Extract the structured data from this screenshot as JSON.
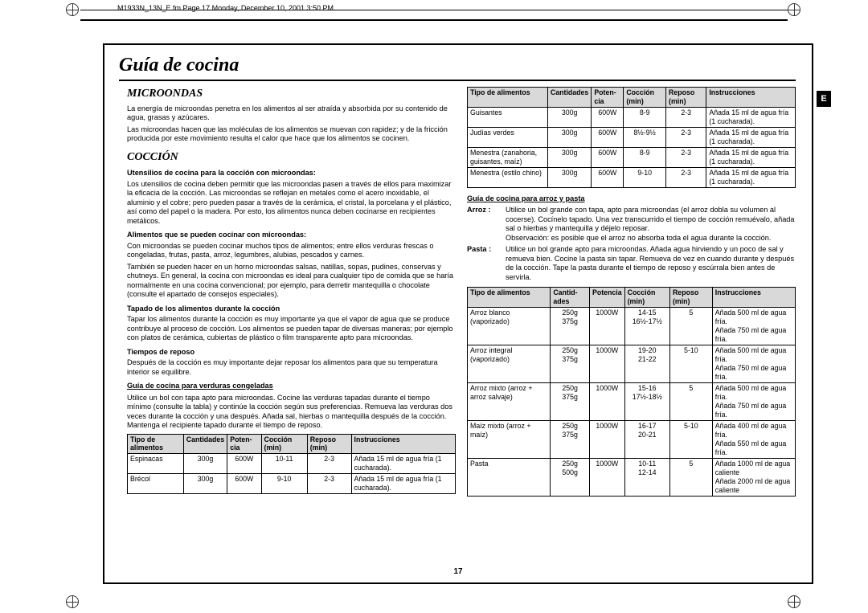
{
  "header": {
    "file_info": "M1933N_13N_E.fm  Page 17  Monday, December 10, 2001  3:50 PM"
  },
  "side_tab": "E",
  "title": "Guía de cocina",
  "page_number": "17",
  "left": {
    "h1": "MICROONDAS",
    "p1": "La energía de microondas penetra en los alimentos al ser atraída y absorbida por su contenido de agua, grasas y azúcares.",
    "p2": "Las microondas hacen que las moléculas de los alimentos se muevan con rapidez; y de la fricción producida por este movimiento resulta el calor que hace que los alimentos se cocinen.",
    "h2": "COCCIÓN",
    "sub1": "Utensilios de cocina para la cocción con microondas:",
    "sub1_text": "Los utensilios de cocina deben permitir que las microondas pasen a través de ellos para maximizar la eficacia de la cocción. Las microondas se reflejan en metales como el acero inoxidable, el aluminio y el cobre; pero pueden pasar a través de la cerámica, el cristal, la porcelana y el plástico, así como del papel o la madera. Por esto, los alimentos nunca deben cocinarse en recipientes metálicos.",
    "sub2": "Alimentos que se pueden cocinar con microondas:",
    "sub2_text1": "Con microondas se pueden cocinar muchos tipos de alimentos; entre ellos verduras frescas o congeladas, frutas, pasta, arroz, legumbres, alubias, pescados y carnes.",
    "sub2_text2": "También se pueden hacer en un horno microondas salsas, natillas, sopas, pudines, conservas y chutneys. En general, la cocina con microondas es ideal para cualquier tipo de comida que se haría normalmente en una cocina convencional; por ejemplo, para derretir mantequilla o chocolate (consulte el apartado de consejos especiales).",
    "sub3": "Tapado de los alimentos durante la cocción",
    "sub3_text": "Tapar los alimentos durante la cocción es muy importante ya que el vapor de agua que se produce contribuye al proceso de cocción. Los alimentos se pueden tapar de diversas maneras; por ejemplo con platos de cerámica, cubiertas de plástico o film transparente apto para microondas.",
    "sub4": "Tiempos de reposo",
    "sub4_text": "Después de la cocción es muy importante dejar reposar los alimentos para que su temperatura interior se equilibre.",
    "sub5": "Guía de cocina para verduras congeladas",
    "sub5_text": "Utilice un bol con tapa apto para microondas. Cocine las verduras tapadas durante el tiempo mínimo (consulte la tabla) y continúe la cocción según sus preferencias. Remueva las verduras dos veces durante la cocción y una después. Añada sal, hierbas o mantequilla después de la cocción. Mantenga el recipiente tapado durante el tiempo de reposo.",
    "table1": {
      "headers": [
        "Tipo de alimentos",
        "Cantidades",
        "Poten-cia",
        "Cocción (min)",
        "Reposo (min)",
        "Instrucciones"
      ],
      "rows": [
        [
          "Espinacas",
          "300g",
          "600W",
          "10-11",
          "2-3",
          "Añada 15 ml de agua fría (1 cucharada)."
        ],
        [
          "Brécol",
          "300g",
          "600W",
          "9-10",
          "2-3",
          "Añada 15 ml de agua fría (1 cucharada)."
        ]
      ]
    }
  },
  "right": {
    "table2": {
      "headers": [
        "Tipo de alimentos",
        "Cantidades",
        "Poten-cia",
        "Cocción (min)",
        "Reposo (min)",
        "Instrucciones"
      ],
      "rows": [
        [
          "Guisantes",
          "300g",
          "600W",
          "8-9",
          "2-3",
          "Añada 15 ml de agua fría (1 cucharada)."
        ],
        [
          "Judías verdes",
          "300g",
          "600W",
          "8½-9½",
          "2-3",
          "Añada 15 ml de agua fría (1 cucharada)."
        ],
        [
          "Menestra (zanahoria, guisantes, maíz)",
          "300g",
          "600W",
          "8-9",
          "2-3",
          "Añada 15 ml de agua fría (1 cucharada)."
        ],
        [
          "Menestra (estilo chino)",
          "300g",
          "600W",
          "9-10",
          "2-3",
          "Añada 15 ml de agua fría (1 cucharada)."
        ]
      ]
    },
    "sub6": "Guía de cocina para arroz y pasta",
    "arroz_label": "Arroz :",
    "arroz_text": "Utilice un bol grande con tapa, apto para microondas (el arroz dobla su volumen al cocerse). Cocínelo tapado. Una vez transcurrido el tiempo de cocción remuévalo, añada sal o hierbas y mantequilla y déjelo reposar.\nObservación: es posible que el arroz no absorba toda el agua durante la cocción.",
    "pasta_label": "Pasta :",
    "pasta_text": "Utilice un bol grande apto para microondas. Añada agua hirviendo y un poco de sal y remueva bien. Cocine la pasta sin tapar. Remueva de vez en cuando durante y después de la cocción. Tape la pasta durante el tiempo de reposo y escúrrala bien antes de servirla.",
    "table3": {
      "headers": [
        "Tipo de alimentos",
        "Cantid-ades",
        "Potencia",
        "Cocción (min)",
        "Reposo (min)",
        "Instrucciones"
      ],
      "rows": [
        {
          "c1": "Arroz blanco (vaporizado)",
          "c2": "250g\n375g",
          "c3": "1000W",
          "c4": "14-15\n16½-17½",
          "c5": "5",
          "c6": "Añada 500 ml de agua fría.\nAñada 750 ml de agua fría."
        },
        {
          "c1": "Arroz integral (vaporizado)",
          "c2": "250g\n375g",
          "c3": "1000W",
          "c4": "19-20\n21-22",
          "c5": "5-10",
          "c6": "Añada 500 ml de agua fría.\nAñada 750 ml de agua fría."
        },
        {
          "c1": "Arroz mixto (arroz + arroz salvaje)",
          "c2": "250g\n375g",
          "c3": "1000W",
          "c4": "15-16\n17½-18½",
          "c5": "5",
          "c6": "Añada 500 ml de agua fría.\nAñada 750 ml de agua fría."
        },
        {
          "c1": "Maíz mixto (arroz + maíz)",
          "c2": "250g\n375g",
          "c3": "1000W",
          "c4": "16-17\n20-21",
          "c5": "5-10",
          "c6": "Añada 400 ml de agua fría.\nAñada 550 ml de agua fría."
        },
        {
          "c1": "Pasta",
          "c2": "250g\n500g",
          "c3": "1000W",
          "c4": "10-11\n12-14",
          "c5": "5",
          "c6": "Añada 1000 ml de agua caliente\nAñada 2000 ml de agua caliente"
        }
      ]
    }
  }
}
